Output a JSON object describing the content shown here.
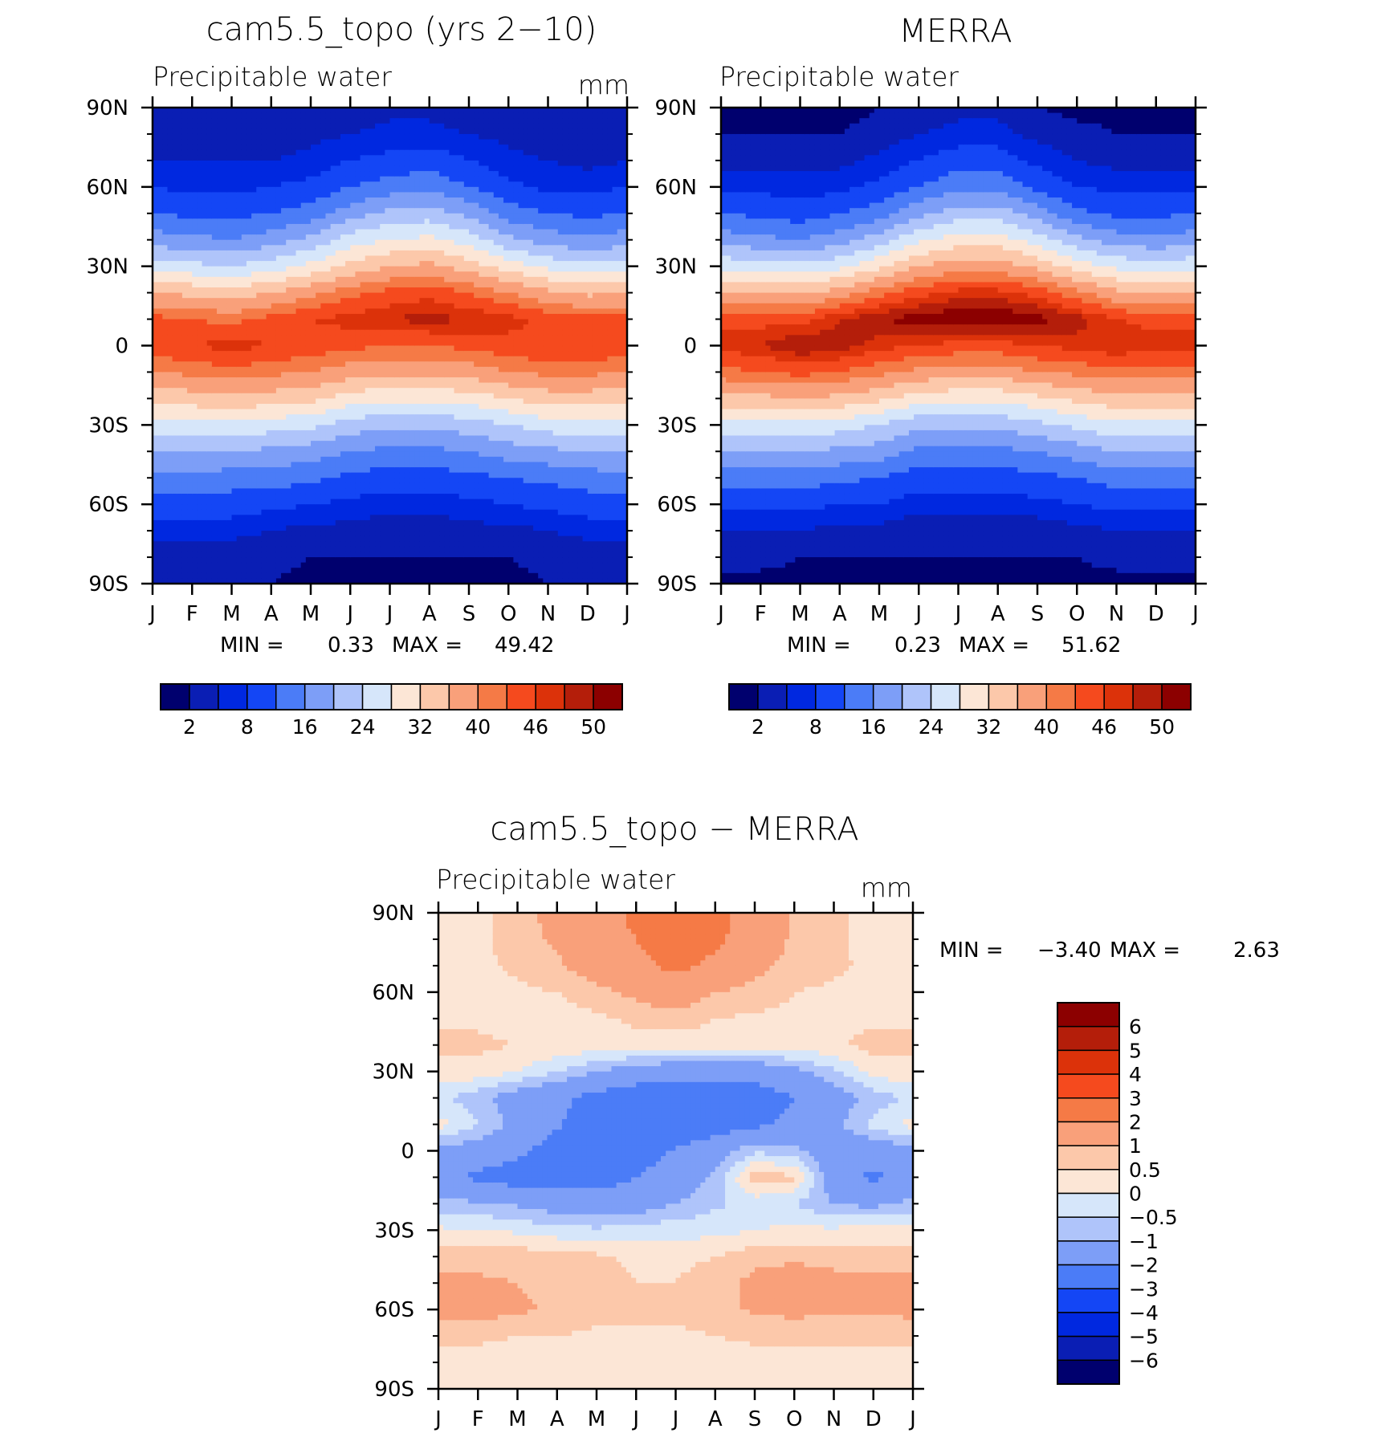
{
  "colors": {
    "precip_levels": [
      "#00006e",
      "#0a1eb4",
      "#0028e0",
      "#1446f5",
      "#4b7cf7",
      "#7d9ef7",
      "#afc4fa",
      "#d6e6fa",
      "#fce6d6",
      "#fcc8aa",
      "#f9a07a",
      "#f57a46",
      "#f54a1e",
      "#dc320a",
      "#b41e0a",
      "#8c0000"
    ],
    "diff_levels": [
      "#00006e",
      "#0a1eb4",
      "#0028e0",
      "#1446f5",
      "#4b7cf7",
      "#7d9ef7",
      "#afc4fa",
      "#d6e6fa",
      "#fce6d6",
      "#fcc8aa",
      "#f9a07a",
      "#f57a46",
      "#f54a1e",
      "#dc320a",
      "#b41e0a",
      "#8c0000"
    ]
  },
  "chart_data": [
    {
      "type": "heatmap",
      "title": "cam5.5_topo (yrs 2−10)",
      "subtitle_left": "Precipitable water",
      "subtitle_right": "mm",
      "x": [
        "J",
        "F",
        "M",
        "A",
        "M",
        "J",
        "J",
        "A",
        "S",
        "O",
        "N",
        "D",
        "J"
      ],
      "y_ticks": [
        "90N",
        "60N",
        "30N",
        "0",
        "30S",
        "60S",
        "90S"
      ],
      "ylim": [
        -90,
        90
      ],
      "stats": {
        "min_label": "MIN =",
        "min": "0.33",
        "max_label": "MAX =",
        "max": "49.42"
      },
      "colorbar_labels": [
        "2",
        "8",
        "16",
        "24",
        "32",
        "40",
        "46",
        "50"
      ],
      "approx_profile": {
        "lat": [
          -90,
          -80,
          -70,
          -60,
          -50,
          -40,
          -30,
          -20,
          -10,
          0,
          10,
          20,
          30,
          40,
          50,
          60,
          70,
          80,
          90
        ],
        "month_values": [
          [
            2,
            3,
            6,
            10,
            15,
            20,
            26,
            33,
            40,
            45,
            44,
            36,
            26,
            18,
            12,
            8,
            5,
            3,
            2
          ],
          [
            2,
            3,
            6,
            10,
            15,
            20,
            27,
            34,
            41,
            46,
            43,
            35,
            25,
            17,
            11,
            7,
            5,
            3,
            2
          ],
          [
            2,
            3,
            6,
            10,
            14,
            20,
            27,
            35,
            42,
            47,
            42,
            34,
            24,
            16,
            11,
            7,
            5,
            3,
            2
          ],
          [
            2,
            3,
            5,
            9,
            14,
            19,
            26,
            34,
            41,
            46,
            44,
            36,
            26,
            18,
            12,
            8,
            5,
            3,
            2
          ],
          [
            1,
            2,
            4,
            8,
            13,
            18,
            25,
            33,
            40,
            45,
            46,
            39,
            29,
            21,
            14,
            9,
            6,
            4,
            3
          ],
          [
            1,
            2,
            4,
            7,
            11,
            16,
            22,
            30,
            38,
            44,
            47,
            42,
            33,
            26,
            18,
            12,
            8,
            5,
            3
          ],
          [
            1,
            2,
            3,
            6,
            10,
            15,
            21,
            29,
            37,
            43,
            48,
            44,
            36,
            28,
            21,
            14,
            9,
            6,
            4
          ],
          [
            1,
            2,
            3,
            6,
            10,
            15,
            21,
            29,
            37,
            43,
            49,
            45,
            37,
            29,
            22,
            15,
            10,
            6,
            4
          ],
          [
            1,
            2,
            4,
            7,
            11,
            16,
            22,
            30,
            38,
            44,
            48,
            43,
            34,
            26,
            19,
            12,
            8,
            5,
            3
          ],
          [
            1,
            2,
            4,
            8,
            12,
            18,
            24,
            32,
            40,
            45,
            47,
            40,
            30,
            21,
            14,
            9,
            6,
            4,
            2
          ],
          [
            2,
            3,
            5,
            9,
            13,
            19,
            26,
            34,
            41,
            46,
            45,
            37,
            27,
            18,
            12,
            7,
            5,
            3,
            2
          ],
          [
            2,
            3,
            6,
            10,
            14,
            20,
            27,
            34,
            41,
            46,
            44,
            35,
            25,
            17,
            11,
            7,
            4,
            3,
            2
          ],
          [
            2,
            3,
            6,
            10,
            15,
            20,
            26,
            33,
            40,
            45,
            44,
            36,
            26,
            18,
            12,
            8,
            5,
            3,
            2
          ]
        ]
      }
    },
    {
      "type": "heatmap",
      "title": "MERRA",
      "subtitle_left": "Precipitable water",
      "subtitle_right": "",
      "x": [
        "J",
        "F",
        "M",
        "A",
        "M",
        "J",
        "J",
        "A",
        "S",
        "O",
        "N",
        "D",
        "J"
      ],
      "y_ticks": [
        "90N",
        "60N",
        "30N",
        "0",
        "30S",
        "60S",
        "90S"
      ],
      "ylim": [
        -90,
        90
      ],
      "stats": {
        "min_label": "MIN =",
        "min": "0.23",
        "max_label": "MAX =",
        "max": "51.62"
      },
      "colorbar_labels": [
        "2",
        "8",
        "16",
        "24",
        "32",
        "40",
        "46",
        "50"
      ],
      "approx_profile": {
        "lat": [
          -90,
          -80,
          -70,
          -60,
          -50,
          -40,
          -30,
          -20,
          -10,
          0,
          10,
          20,
          30,
          40,
          50,
          60,
          70,
          80,
          90
        ],
        "month_values": [
          [
            1,
            3,
            5,
            9,
            14,
            20,
            27,
            35,
            42,
            47,
            45,
            37,
            27,
            18,
            12,
            7,
            4,
            2,
            1
          ],
          [
            1,
            3,
            5,
            9,
            14,
            20,
            27,
            35,
            43,
            48,
            45,
            36,
            26,
            17,
            11,
            7,
            4,
            2,
            1
          ],
          [
            1,
            2,
            5,
            9,
            14,
            20,
            27,
            36,
            44,
            50,
            45,
            35,
            25,
            16,
            10,
            6,
            4,
            2,
            1
          ],
          [
            1,
            2,
            4,
            8,
            13,
            19,
            26,
            35,
            43,
            49,
            48,
            38,
            27,
            18,
            12,
            7,
            4,
            2,
            1
          ],
          [
            1,
            2,
            4,
            8,
            12,
            18,
            24,
            33,
            41,
            47,
            50,
            42,
            31,
            22,
            14,
            9,
            6,
            3,
            2
          ],
          [
            1,
            2,
            3,
            6,
            10,
            15,
            21,
            30,
            39,
            46,
            51,
            45,
            36,
            27,
            19,
            12,
            8,
            5,
            3
          ],
          [
            1,
            2,
            3,
            6,
            10,
            15,
            21,
            29,
            38,
            45,
            52,
            47,
            38,
            30,
            22,
            15,
            10,
            6,
            4
          ],
          [
            1,
            2,
            3,
            6,
            10,
            15,
            21,
            29,
            38,
            45,
            52,
            47,
            38,
            30,
            22,
            15,
            10,
            6,
            4
          ],
          [
            1,
            2,
            3,
            7,
            11,
            16,
            23,
            31,
            40,
            46,
            51,
            45,
            35,
            26,
            18,
            11,
            7,
            4,
            2
          ],
          [
            1,
            2,
            4,
            8,
            12,
            18,
            25,
            33,
            41,
            47,
            49,
            41,
            30,
            21,
            13,
            8,
            5,
            3,
            1
          ],
          [
            1,
            3,
            5,
            9,
            14,
            20,
            27,
            35,
            42,
            48,
            46,
            37,
            27,
            18,
            11,
            7,
            4,
            2,
            1
          ],
          [
            1,
            3,
            5,
            9,
            14,
            20,
            27,
            35,
            42,
            47,
            45,
            36,
            26,
            17,
            11,
            7,
            4,
            2,
            1
          ],
          [
            1,
            3,
            5,
            9,
            14,
            20,
            27,
            35,
            42,
            47,
            45,
            37,
            27,
            18,
            12,
            7,
            4,
            2,
            1
          ]
        ]
      }
    },
    {
      "type": "heatmap",
      "title": "cam5.5_topo − MERRA",
      "subtitle_left": "Precipitable water",
      "subtitle_right": "mm",
      "x": [
        "J",
        "F",
        "M",
        "A",
        "M",
        "J",
        "J",
        "A",
        "S",
        "O",
        "N",
        "D",
        "J"
      ],
      "y_ticks": [
        "90N",
        "60N",
        "30N",
        "0",
        "30S",
        "60S",
        "90S"
      ],
      "ylim": [
        -90,
        90
      ],
      "stats": {
        "min_label": "MIN =",
        "min": "−3.40",
        "max_label": "MAX =",
        "max": "2.63"
      },
      "colorbar_labels": [
        "6",
        "5",
        "4",
        "3",
        "2",
        "1",
        "0.5",
        "0",
        "−0.5",
        "−1",
        "−2",
        "−3",
        "−4",
        "−5",
        "−6"
      ],
      "approx_profile": {
        "lat": [
          -90,
          -80,
          -70,
          -60,
          -50,
          -40,
          -30,
          -20,
          -10,
          0,
          10,
          20,
          30,
          40,
          50,
          60,
          70,
          80,
          90
        ],
        "month_values": [
          [
            0.2,
            0.3,
            0.6,
            1.2,
            1.1,
            0.8,
            0.1,
            -0.8,
            -1.6,
            -1.2,
            0.2,
            -0.4,
            0.4,
            0.6,
            0.4,
            0.3,
            0.3,
            0.3,
            0.3
          ],
          [
            0.2,
            0.3,
            0.6,
            1.3,
            1.1,
            0.8,
            0.0,
            -0.9,
            -2.2,
            -1.4,
            -0.5,
            -0.8,
            0.3,
            0.6,
            0.4,
            0.3,
            0.4,
            0.3,
            0.3
          ],
          [
            0.2,
            0.3,
            0.5,
            1.1,
            1.0,
            0.8,
            -0.1,
            -1.1,
            -2.5,
            -1.8,
            -1.2,
            -1.4,
            0.0,
            0.5,
            0.3,
            0.4,
            0.6,
            0.8,
            0.8
          ],
          [
            0.2,
            0.3,
            0.5,
            0.9,
            0.8,
            0.7,
            -0.3,
            -1.4,
            -2.6,
            -2.4,
            -1.9,
            -1.8,
            -0.5,
            0.4,
            0.3,
            0.5,
            0.9,
            1.1,
            1.2
          ],
          [
            0.2,
            0.3,
            0.4,
            0.7,
            0.7,
            0.6,
            -0.4,
            -1.6,
            -2.4,
            -2.6,
            -2.5,
            -2.3,
            -1.0,
            0.3,
            0.4,
            0.8,
            1.4,
            1.6,
            1.6
          ],
          [
            0.2,
            0.3,
            0.4,
            0.6,
            0.5,
            0.4,
            -0.3,
            -1.4,
            -2.0,
            -2.5,
            -2.8,
            -2.6,
            -1.4,
            0.3,
            0.6,
            1.2,
            1.8,
            2.0,
            2.2
          ],
          [
            0.2,
            0.3,
            0.4,
            0.6,
            0.5,
            0.4,
            -0.2,
            -1.0,
            -1.5,
            -1.9,
            -2.7,
            -2.8,
            -1.6,
            0.2,
            0.8,
            1.5,
            2.2,
            2.4,
            2.6
          ],
          [
            0.2,
            0.3,
            0.5,
            0.8,
            0.7,
            0.5,
            -0.2,
            -0.6,
            -0.9,
            -1.4,
            -2.5,
            -2.7,
            -1.7,
            0.2,
            0.5,
            1.0,
            1.8,
            2.2,
            2.4
          ],
          [
            0.2,
            0.3,
            0.6,
            1.1,
            1.2,
            0.8,
            0.0,
            -0.3,
            0.8,
            -0.6,
            -2.2,
            -2.5,
            -1.6,
            0.2,
            0.4,
            0.8,
            1.2,
            1.5,
            1.5
          ],
          [
            0.2,
            0.3,
            0.6,
            1.2,
            1.3,
            0.9,
            0.1,
            -0.5,
            0.6,
            -0.8,
            -1.8,
            -2.0,
            -1.2,
            0.3,
            0.4,
            0.5,
            0.8,
            0.9,
            0.9
          ],
          [
            0.2,
            0.3,
            0.6,
            1.1,
            1.2,
            0.8,
            0.1,
            -1.0,
            -1.6,
            -1.5,
            -1.2,
            -1.4,
            -0.6,
            0.4,
            0.3,
            0.4,
            0.6,
            0.6,
            0.6
          ],
          [
            0.2,
            0.3,
            0.6,
            1.1,
            1.1,
            0.8,
            0.2,
            -1.2,
            -2.2,
            -1.6,
            -0.3,
            -0.8,
            0.2,
            0.7,
            0.4,
            0.3,
            0.4,
            0.3,
            0.3
          ],
          [
            0.2,
            0.3,
            0.6,
            1.2,
            1.1,
            0.8,
            0.1,
            -0.8,
            -1.6,
            -1.2,
            0.2,
            -0.4,
            0.4,
            0.6,
            0.4,
            0.3,
            0.3,
            0.3,
            0.3
          ]
        ]
      }
    }
  ]
}
